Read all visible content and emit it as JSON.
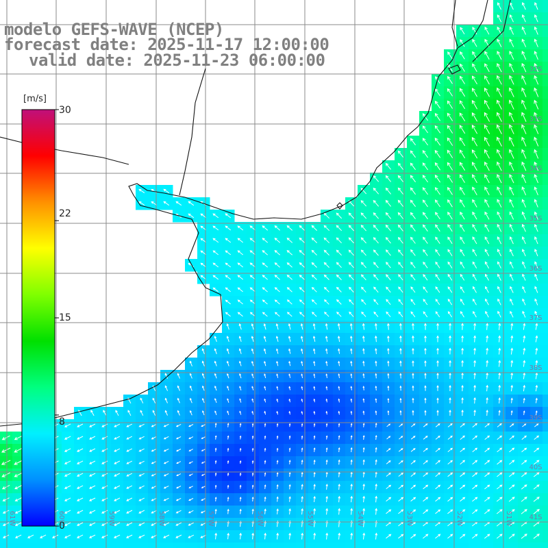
{
  "header": {
    "model_title": "modelo GEFS-WAVE (NCEP)",
    "forecast_date": "forecast date: 2025-11-17 12:00:00",
    "valid_date": "valid date: 2025-11-23 06:00:00"
  },
  "colorbar": {
    "unit": "[m/s]",
    "ticks": [
      "30",
      "22",
      "15",
      "8",
      "0"
    ],
    "tick_values": [
      30,
      22,
      15,
      8,
      0
    ],
    "range": [
      0,
      30
    ],
    "colors": [
      "#0000ff",
      "#0090ff",
      "#00f0ff",
      "#00ff80",
      "#00e000",
      "#80ff00",
      "#ffff00",
      "#ff9000",
      "#ff0000",
      "#c0107a"
    ]
  },
  "grid": {
    "lat_labels": [
      "32S",
      "33S",
      "34S",
      "35S",
      "36S",
      "37S",
      "38S",
      "39S",
      "40S",
      "41S"
    ],
    "lon_labels": [
      "61W",
      "60W",
      "59W",
      "58W",
      "57W",
      "56W",
      "55W",
      "54W",
      "53W",
      "52W",
      "51W"
    ]
  },
  "field": {
    "variable": "wind speed",
    "units": "m/s",
    "display_range": [
      0,
      30
    ]
  }
}
